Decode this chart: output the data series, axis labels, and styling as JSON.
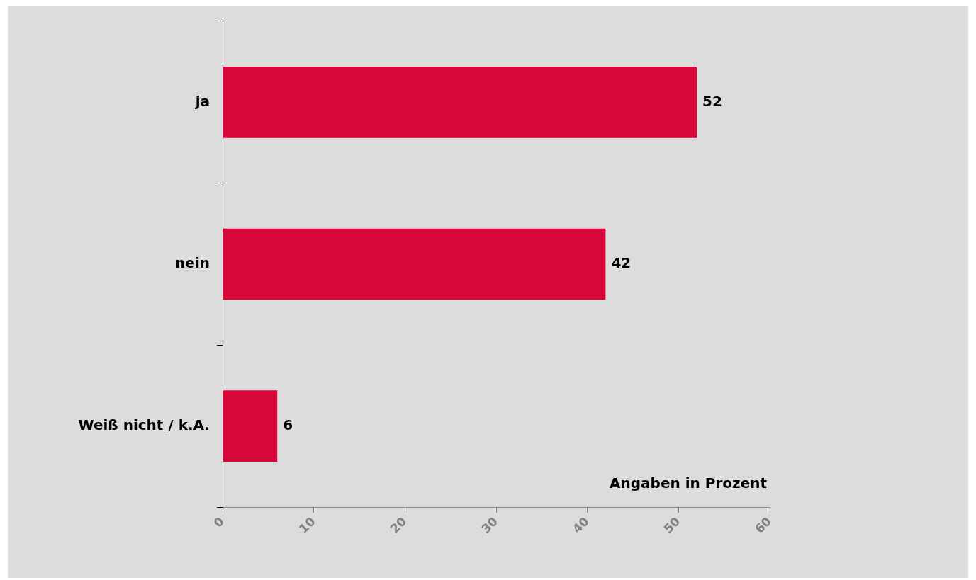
{
  "chart_data": {
    "type": "bar",
    "orientation": "horizontal",
    "categories": [
      "ja",
      "nein",
      "Weiß nicht / k.A."
    ],
    "values": [
      52,
      42,
      6
    ],
    "color": "#d70739",
    "xlim": [
      0,
      60
    ],
    "xticks": [
      0,
      10,
      20,
      30,
      40,
      50,
      60
    ],
    "grid": false,
    "legend": false,
    "data_labels": true,
    "annotations": [
      "Angaben in Prozent"
    ]
  }
}
